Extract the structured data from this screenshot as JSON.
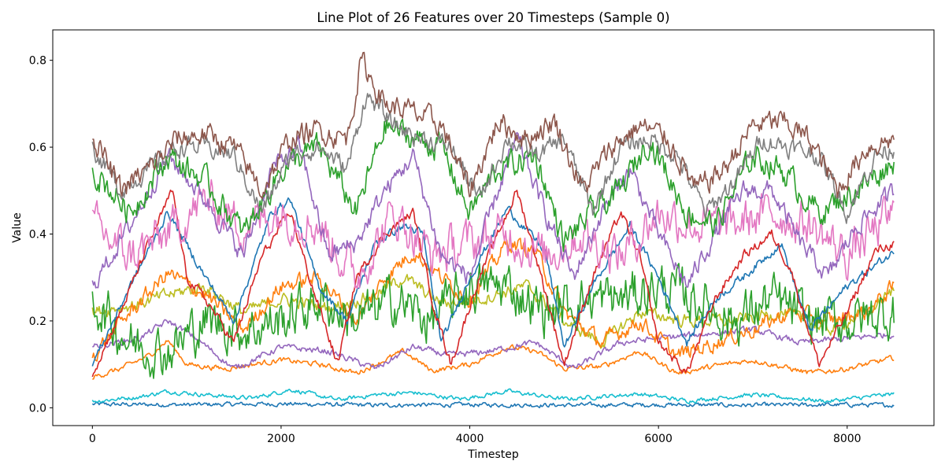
{
  "chart_data": {
    "type": "line",
    "title": "Line Plot of 26 Features over 20 Timesteps (Sample 0)",
    "xlabel": "Timestep",
    "ylabel": "Value",
    "xlim": [
      -420,
      8920
    ],
    "ylim": [
      -0.041,
      0.87
    ],
    "xticks": [
      0,
      2000,
      4000,
      6000,
      8000
    ],
    "yticks": [
      0.0,
      0.2,
      0.4,
      0.6,
      0.8
    ],
    "xtick_labels": [
      "0",
      "2000",
      "4000",
      "6000",
      "8000"
    ],
    "ytick_labels": [
      "0.0",
      "0.2",
      "0.4",
      "0.6",
      "0.8"
    ],
    "grid": false,
    "legend": "none",
    "series": [
      {
        "color": "#1f77b4",
        "noise": 0.004,
        "x": [
          0,
          1000,
          2000,
          3000,
          4000,
          5000,
          6000,
          7000,
          8000,
          8500
        ],
        "values": [
          0.008,
          0.007,
          0.009,
          0.006,
          0.007,
          0.006,
          0.007,
          0.006,
          0.007,
          0.006
        ]
      },
      {
        "color": "#17becf",
        "noise": 0.004,
        "x": [
          0,
          500,
          800,
          1200,
          1700,
          2100,
          2600,
          3000,
          3400,
          3900,
          4400,
          5000,
          5800,
          6300,
          7000,
          7800,
          8500
        ],
        "values": [
          0.015,
          0.025,
          0.038,
          0.03,
          0.022,
          0.042,
          0.018,
          0.03,
          0.035,
          0.02,
          0.038,
          0.02,
          0.032,
          0.016,
          0.03,
          0.015,
          0.032
        ]
      },
      {
        "color": "#ff7f0e",
        "noise": 0.005,
        "x": [
          0,
          300,
          600,
          800,
          1000,
          1400,
          2000,
          2400,
          2800,
          3000,
          3300,
          3600,
          4000,
          4400,
          4700,
          5000,
          5400,
          5800,
          6200,
          6700,
          7000,
          7600,
          8000,
          8500
        ],
        "values": [
          0.07,
          0.09,
          0.12,
          0.155,
          0.1,
          0.09,
          0.11,
          0.1,
          0.08,
          0.1,
          0.13,
          0.085,
          0.1,
          0.14,
          0.13,
          0.09,
          0.095,
          0.13,
          0.08,
          0.1,
          0.11,
          0.08,
          0.09,
          0.115
        ]
      },
      {
        "color": "#9467bd",
        "noise": 0.006,
        "x": [
          0,
          500,
          800,
          1100,
          1500,
          2000,
          2500,
          3000,
          3400,
          3800,
          4200,
          4700,
          5100,
          5600,
          6000,
          6500,
          7000,
          7500,
          8000,
          8500
        ],
        "values": [
          0.14,
          0.16,
          0.2,
          0.16,
          0.09,
          0.14,
          0.13,
          0.09,
          0.14,
          0.12,
          0.13,
          0.15,
          0.09,
          0.15,
          0.16,
          0.17,
          0.18,
          0.15,
          0.16,
          0.17
        ]
      },
      {
        "color": "#bcbd22",
        "noise": 0.012,
        "x": [
          0,
          500,
          800,
          1200,
          1600,
          2000,
          2500,
          3000,
          3300,
          3700,
          4100,
          4600,
          5000,
          5400,
          5800,
          6300,
          6800,
          7300,
          7800,
          8200,
          8500
        ],
        "values": [
          0.22,
          0.24,
          0.26,
          0.28,
          0.22,
          0.25,
          0.23,
          0.26,
          0.3,
          0.24,
          0.25,
          0.28,
          0.2,
          0.15,
          0.22,
          0.2,
          0.2,
          0.22,
          0.18,
          0.22,
          0.27
        ]
      },
      {
        "color": "#ff7f0e",
        "noise": 0.015,
        "x": [
          0,
          400,
          800,
          1200,
          1600,
          2000,
          2400,
          2800,
          3100,
          3400,
          3700,
          4000,
          4400,
          4700,
          5000,
          5400,
          5800,
          6200,
          6600,
          7000,
          7400,
          7800,
          8200,
          8500
        ],
        "values": [
          0.12,
          0.22,
          0.31,
          0.26,
          0.18,
          0.28,
          0.3,
          0.2,
          0.3,
          0.36,
          0.3,
          0.25,
          0.38,
          0.36,
          0.22,
          0.15,
          0.2,
          0.12,
          0.15,
          0.18,
          0.22,
          0.2,
          0.22,
          0.28
        ]
      },
      {
        "color": "#2ca02c",
        "noise": 0.045,
        "x": [
          0,
          400,
          800,
          1200,
          1600,
          2000,
          2400,
          2800,
          3200,
          3600,
          4000,
          4400,
          4800,
          5200,
          5600,
          6000,
          6400,
          6800,
          7200,
          7600,
          8000,
          8500
        ],
        "values": [
          0.25,
          0.15,
          0.13,
          0.2,
          0.18,
          0.2,
          0.25,
          0.2,
          0.25,
          0.2,
          0.28,
          0.28,
          0.22,
          0.25,
          0.25,
          0.28,
          0.25,
          0.2,
          0.25,
          0.2,
          0.2,
          0.22
        ]
      },
      {
        "color": "#1f77b4",
        "noise": 0.008,
        "x": [
          0,
          400,
          800,
          1200,
          1500,
          1900,
          2100,
          2400,
          2700,
          3000,
          3300,
          3500,
          3700,
          4000,
          4400,
          4800,
          5000,
          5300,
          5700,
          6000,
          6300,
          6600,
          7000,
          7300,
          7600,
          8000,
          8500
        ],
        "values": [
          0.1,
          0.28,
          0.45,
          0.3,
          0.2,
          0.45,
          0.48,
          0.28,
          0.2,
          0.38,
          0.42,
          0.4,
          0.15,
          0.3,
          0.46,
          0.36,
          0.14,
          0.28,
          0.42,
          0.3,
          0.15,
          0.25,
          0.32,
          0.38,
          0.18,
          0.28,
          0.36
        ]
      },
      {
        "color": "#d62728",
        "noise": 0.009,
        "x": [
          0,
          300,
          600,
          850,
          1000,
          1200,
          1500,
          1800,
          2100,
          2300,
          2600,
          2800,
          3100,
          3400,
          3600,
          3800,
          4100,
          4500,
          4700,
          5000,
          5300,
          5600,
          5800,
          6000,
          6300,
          6600,
          6900,
          7200,
          7400,
          7700,
          8000,
          8300,
          8500
        ],
        "values": [
          0.08,
          0.22,
          0.38,
          0.5,
          0.3,
          0.25,
          0.15,
          0.35,
          0.45,
          0.3,
          0.1,
          0.3,
          0.4,
          0.45,
          0.25,
          0.1,
          0.3,
          0.5,
          0.35,
          0.1,
          0.3,
          0.45,
          0.35,
          0.15,
          0.08,
          0.25,
          0.35,
          0.4,
          0.32,
          0.1,
          0.22,
          0.36,
          0.38
        ]
      },
      {
        "color": "#e377c2",
        "noise": 0.04,
        "x": [
          0,
          400,
          800,
          1200,
          1600,
          2000,
          2400,
          2800,
          3200,
          3600,
          4000,
          4400,
          4800,
          5200,
          5600,
          6000,
          6400,
          6800,
          7200,
          7600,
          8000,
          8500
        ],
        "values": [
          0.42,
          0.35,
          0.4,
          0.48,
          0.42,
          0.45,
          0.42,
          0.3,
          0.45,
          0.35,
          0.38,
          0.4,
          0.35,
          0.4,
          0.35,
          0.45,
          0.42,
          0.42,
          0.45,
          0.42,
          0.35,
          0.45
        ]
      },
      {
        "color": "#9467bd",
        "noise": 0.018,
        "x": [
          0,
          400,
          800,
          1200,
          1600,
          1900,
          2200,
          2500,
          2800,
          3100,
          3400,
          3700,
          4000,
          4300,
          4500,
          4800,
          5100,
          5400,
          5700,
          6000,
          6300,
          6600,
          6900,
          7200,
          7500,
          7800,
          8100,
          8500
        ],
        "values": [
          0.28,
          0.42,
          0.58,
          0.48,
          0.35,
          0.55,
          0.6,
          0.35,
          0.38,
          0.5,
          0.58,
          0.35,
          0.3,
          0.5,
          0.62,
          0.45,
          0.3,
          0.45,
          0.55,
          0.4,
          0.28,
          0.4,
          0.5,
          0.5,
          0.38,
          0.3,
          0.42,
          0.5
        ]
      },
      {
        "color": "#2ca02c",
        "noise": 0.025,
        "x": [
          0,
          400,
          800,
          1200,
          1600,
          2000,
          2400,
          2800,
          3100,
          3400,
          3700,
          4000,
          4300,
          4700,
          5000,
          5300,
          5600,
          5900,
          6300,
          6600,
          7000,
          7300,
          7700,
          8100,
          8500
        ],
        "values": [
          0.55,
          0.45,
          0.58,
          0.52,
          0.4,
          0.55,
          0.6,
          0.45,
          0.65,
          0.62,
          0.6,
          0.45,
          0.55,
          0.58,
          0.38,
          0.45,
          0.5,
          0.62,
          0.45,
          0.42,
          0.58,
          0.55,
          0.45,
          0.5,
          0.57
        ]
      },
      {
        "color": "#7f7f7f",
        "noise": 0.018,
        "x": [
          0,
          300,
          600,
          900,
          1200,
          1500,
          1800,
          2100,
          2400,
          2700,
          2900,
          3200,
          3500,
          3800,
          4100,
          4400,
          4700,
          5000,
          5300,
          5600,
          5900,
          6200,
          6500,
          6800,
          7100,
          7400,
          7700,
          8000,
          8300,
          8500
        ],
        "values": [
          0.6,
          0.5,
          0.55,
          0.6,
          0.6,
          0.58,
          0.45,
          0.58,
          0.6,
          0.55,
          0.72,
          0.65,
          0.62,
          0.6,
          0.48,
          0.62,
          0.58,
          0.62,
          0.45,
          0.6,
          0.62,
          0.58,
          0.45,
          0.52,
          0.62,
          0.6,
          0.58,
          0.45,
          0.58,
          0.6
        ]
      },
      {
        "color": "#8c564b",
        "noise": 0.022,
        "x": [
          0,
          300,
          600,
          900,
          1200,
          1500,
          1800,
          2100,
          2400,
          2700,
          2850,
          3100,
          3400,
          3700,
          4000,
          4300,
          4600,
          4900,
          5200,
          5500,
          5800,
          6100,
          6400,
          6700,
          7000,
          7300,
          7600,
          7900,
          8200,
          8500
        ],
        "values": [
          0.63,
          0.5,
          0.55,
          0.62,
          0.63,
          0.6,
          0.5,
          0.62,
          0.64,
          0.62,
          0.8,
          0.7,
          0.68,
          0.65,
          0.5,
          0.66,
          0.62,
          0.66,
          0.5,
          0.6,
          0.65,
          0.62,
          0.5,
          0.55,
          0.65,
          0.66,
          0.62,
          0.5,
          0.6,
          0.62
        ]
      }
    ]
  }
}
